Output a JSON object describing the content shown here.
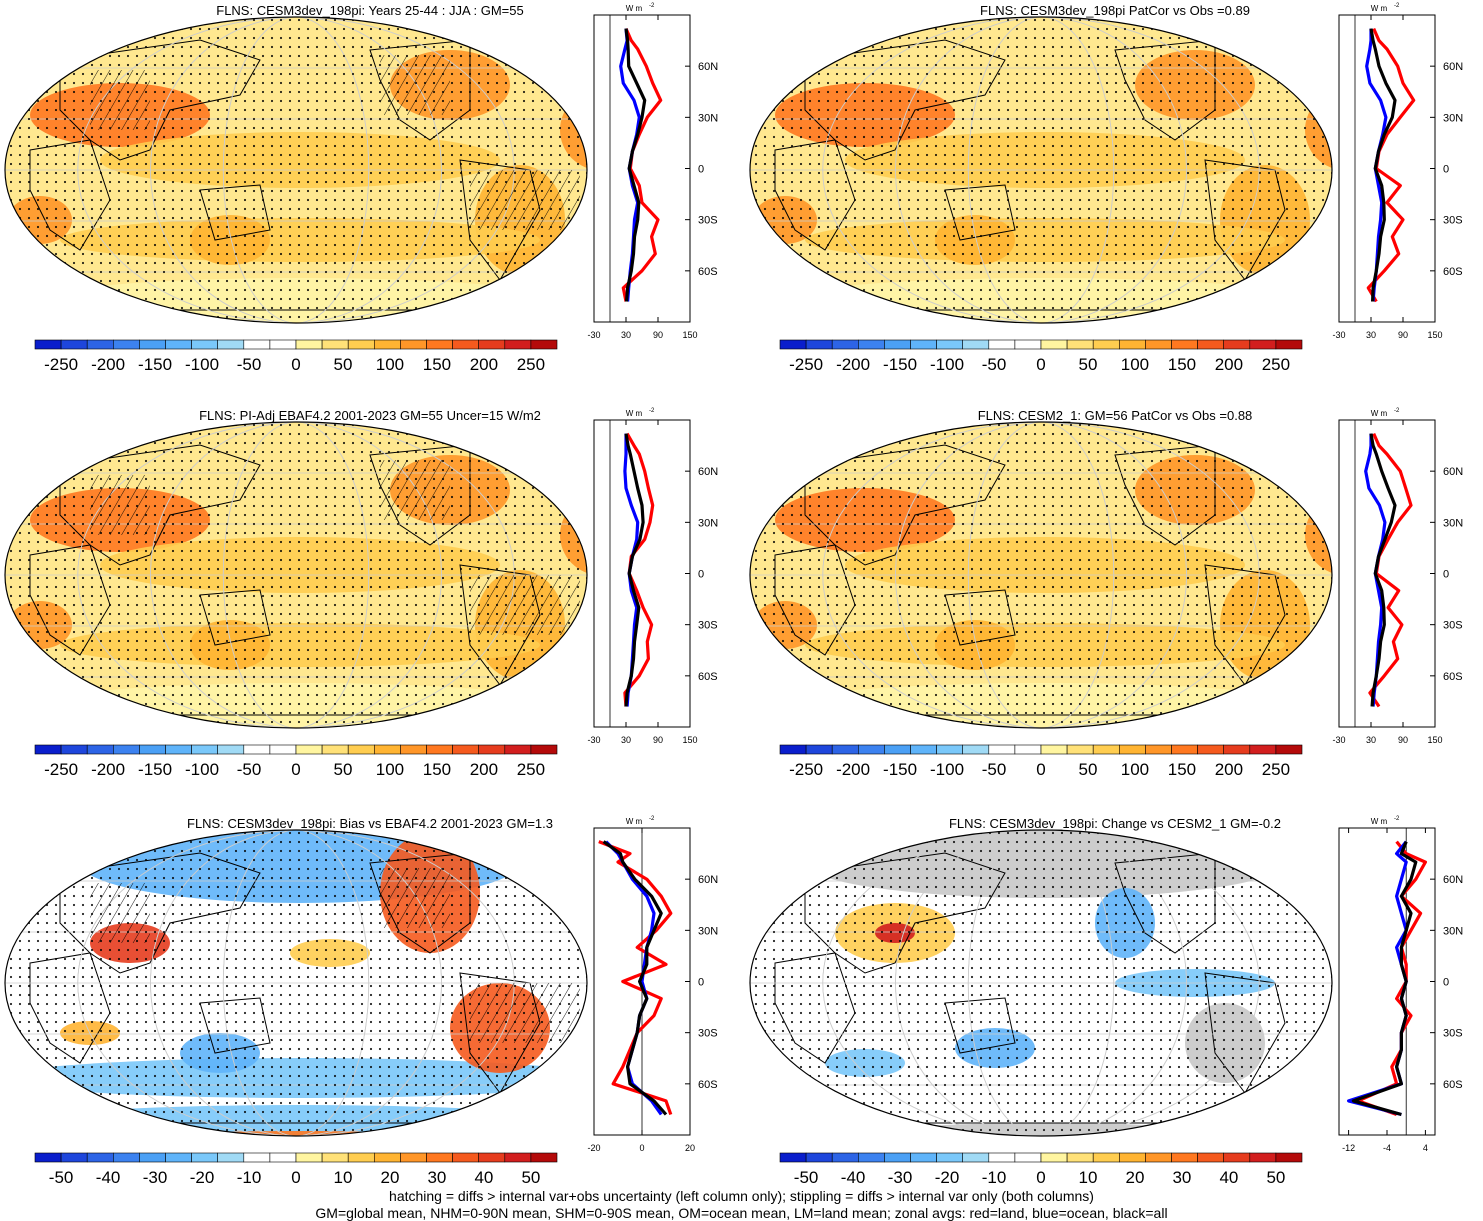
{
  "colors": {
    "land_line": "#000000",
    "ocean_line": "#0000ff",
    "all_line": "#000000",
    "land_red": "#ff0000",
    "missing": "#c8c8c8"
  },
  "color_scale": [
    "#0a1ecc",
    "#1e46dc",
    "#2d64e6",
    "#3c82f0",
    "#4ba0f5",
    "#5fb4fa",
    "#7ac8fa",
    "#a0daf5",
    "#ffffff",
    "#ffffff",
    "#fff5a0",
    "#ffe178",
    "#ffcd50",
    "#ffb432",
    "#ff9628",
    "#ff7820",
    "#f55a1e",
    "#e63c1e",
    "#d21e1e",
    "#b40a0a"
  ],
  "chart_data": [
    {
      "type": "heatmap",
      "panel": "p1",
      "title": "FLNS: CESM3dev_198pi: Years 25-44 : JJA : GM=55",
      "colorbar_ticks": [
        "-250",
        "-200",
        "-150",
        "-100",
        "-50",
        "0",
        "50",
        "100",
        "150",
        "200",
        "250"
      ],
      "zonal": {
        "type": "line",
        "unit_label": "W m",
        "unit_sup": "-2",
        "xlim": [
          -30,
          150
        ],
        "xticks": [
          "-30",
          "30",
          "90",
          "150"
        ],
        "ylim": [
          -90,
          90
        ],
        "yticks": [
          "60N",
          "30N",
          "0",
          "30S",
          "60S"
        ],
        "lat": [
          82,
          75,
          70,
          60,
          50,
          40,
          30,
          20,
          10,
          0,
          -10,
          -20,
          -30,
          -40,
          -50,
          -60,
          -70,
          -78
        ],
        "series": [
          {
            "key": "land",
            "values": [
              30,
              40,
              52,
              68,
              80,
              95,
              70,
              55,
              42,
              38,
              55,
              60,
              90,
              78,
              85,
              60,
              25,
              30
            ]
          },
          {
            "key": "ocean",
            "values": [
              30,
              32,
              28,
              20,
              25,
              45,
              55,
              50,
              42,
              36,
              42,
              52,
              46,
              44,
              42,
              38,
              35,
              33
            ]
          },
          {
            "key": "all",
            "values": [
              30,
              33,
              34,
              35,
              50,
              65,
              60,
              52,
              42,
              36,
              45,
              54,
              52,
              46,
              44,
              40,
              33,
              31
            ]
          }
        ]
      }
    },
    {
      "type": "heatmap",
      "panel": "p2",
      "title": "FLNS: CESM3dev_198pi PatCor vs Obs =0.89",
      "colorbar_ticks": [
        "-250",
        "-200",
        "-150",
        "-100",
        "-50",
        "0",
        "50",
        "100",
        "150",
        "200",
        "250"
      ],
      "zonal": {
        "type": "line",
        "unit_label": "W m",
        "unit_sup": "-2",
        "xlim": [
          -30,
          150
        ],
        "xticks": [
          "-30",
          "30",
          "90",
          "150"
        ],
        "ylim": [
          -90,
          90
        ],
        "yticks": [
          "60N",
          "30N",
          "0",
          "30S",
          "60S"
        ],
        "lat": [
          82,
          75,
          70,
          60,
          50,
          40,
          30,
          20,
          10,
          0,
          -10,
          -20,
          -30,
          -40,
          -50,
          -60,
          -70,
          -78
        ],
        "series": [
          {
            "key": "land",
            "values": [
              35,
              45,
              60,
              80,
              90,
              110,
              85,
              60,
              45,
              40,
              85,
              60,
              90,
              70,
              82,
              55,
              25,
              40
            ]
          },
          {
            "key": "ocean",
            "values": [
              30,
              30,
              28,
              22,
              28,
              48,
              58,
              52,
              44,
              38,
              44,
              50,
              48,
              44,
              42,
              40,
              36,
              34
            ]
          },
          {
            "key": "all",
            "values": [
              30,
              34,
              38,
              45,
              58,
              75,
              70,
              55,
              44,
              38,
              50,
              54,
              55,
              48,
              45,
              40,
              34,
              33
            ]
          }
        ]
      }
    },
    {
      "type": "heatmap",
      "panel": "p3",
      "title": "FLNS: PI-Adj EBAF4.2 2001-2023 GM=55 Uncer=15 W/m2",
      "colorbar_ticks": [
        "-250",
        "-200",
        "-150",
        "-100",
        "-50",
        "0",
        "50",
        "100",
        "150",
        "200",
        "250"
      ],
      "zonal": {
        "type": "line",
        "unit_label": "W m",
        "unit_sup": "-2",
        "xlim": [
          -30,
          150
        ],
        "xticks": [
          "-30",
          "30",
          "90",
          "150"
        ],
        "ylim": [
          -90,
          90
        ],
        "yticks": [
          "60N",
          "30N",
          "0",
          "30S",
          "60S"
        ],
        "lat": [
          82,
          75,
          70,
          60,
          50,
          40,
          30,
          20,
          10,
          0,
          -10,
          -20,
          -30,
          -40,
          -50,
          -60,
          -70,
          -78
        ],
        "series": [
          {
            "key": "land",
            "values": [
              32,
              45,
              55,
              65,
              72,
              80,
              75,
              65,
              40,
              36,
              50,
              62,
              78,
              70,
              72,
              55,
              28,
              30
            ]
          },
          {
            "key": "ocean",
            "values": [
              30,
              30,
              30,
              28,
              30,
              40,
              52,
              50,
              42,
              36,
              40,
              50,
              46,
              44,
              42,
              40,
              34,
              32
            ]
          },
          {
            "key": "all",
            "values": [
              30,
              34,
              38,
              45,
              52,
              60,
              62,
              56,
              42,
              36,
              44,
              54,
              50,
              46,
              44,
              40,
              32,
              30
            ]
          }
        ]
      }
    },
    {
      "type": "heatmap",
      "panel": "p4",
      "title": "FLNS: CESM2_1: GM=56 PatCor vs Obs =0.88",
      "colorbar_ticks": [
        "-250",
        "-200",
        "-150",
        "-100",
        "-50",
        "0",
        "50",
        "100",
        "150",
        "200",
        "250"
      ],
      "zonal": {
        "type": "line",
        "unit_label": "W m",
        "unit_sup": "-2",
        "xlim": [
          -30,
          150
        ],
        "xticks": [
          "-30",
          "30",
          "90",
          "150"
        ],
        "ylim": [
          -90,
          90
        ],
        "yticks": [
          "60N",
          "30N",
          "0",
          "30S",
          "60S"
        ],
        "lat": [
          82,
          75,
          70,
          60,
          50,
          40,
          30,
          20,
          10,
          0,
          -10,
          -20,
          -30,
          -40,
          -50,
          -60,
          -70,
          -78
        ],
        "series": [
          {
            "key": "land",
            "values": [
              35,
              45,
              60,
              85,
              95,
              105,
              80,
              62,
              45,
              40,
              82,
              62,
              88,
              72,
              80,
              55,
              28,
              45
            ]
          },
          {
            "key": "ocean",
            "values": [
              30,
              30,
              28,
              20,
              26,
              46,
              56,
              52,
              44,
              38,
              44,
              50,
              48,
              44,
              42,
              40,
              36,
              34
            ]
          },
          {
            "key": "all",
            "values": [
              30,
              34,
              40,
              50,
              62,
              75,
              68,
              56,
              44,
              38,
              50,
              54,
              55,
              48,
              45,
              40,
              34,
              32
            ]
          }
        ]
      }
    },
    {
      "type": "heatmap",
      "panel": "p5",
      "title": "FLNS: CESM3dev_198pi: Bias vs EBAF4.2 2001-2023 GM=1.3",
      "colorbar_ticks": [
        "-50",
        "-40",
        "-30",
        "-20",
        "-10",
        "0",
        "10",
        "20",
        "30",
        "40",
        "50"
      ],
      "zonal": {
        "type": "line",
        "unit_label": "W m",
        "unit_sup": "-2",
        "xlim": [
          -20,
          20
        ],
        "xticks": [
          "-20",
          "0",
          "20"
        ],
        "ylim": [
          -90,
          90
        ],
        "yticks": [
          "60N",
          "30N",
          "0",
          "30S",
          "60S"
        ],
        "lat": [
          82,
          75,
          70,
          60,
          50,
          40,
          30,
          20,
          10,
          0,
          -10,
          -20,
          -30,
          -40,
          -50,
          -60,
          -70,
          -78
        ],
        "series": [
          {
            "key": "land",
            "values": [
              -18,
              -5,
              -10,
              2,
              8,
              12,
              6,
              -2,
              10,
              -8,
              8,
              5,
              -2,
              -5,
              -8,
              -12,
              10,
              12
            ]
          },
          {
            "key": "ocean",
            "values": [
              -15,
              -10,
              -8,
              -4,
              2,
              5,
              4,
              2,
              1,
              0,
              2,
              -1,
              -2,
              -4,
              -6,
              -4,
              4,
              8
            ]
          },
          {
            "key": "all",
            "values": [
              -16,
              -9,
              -8,
              -3,
              4,
              8,
              5,
              2,
              2,
              -1,
              2,
              -1,
              -2,
              -4,
              -6,
              -5,
              5,
              10
            ]
          }
        ]
      }
    },
    {
      "type": "heatmap",
      "panel": "p6",
      "title": "FLNS: CESM3dev_198pi: Change vs CESM2_1 GM=-0.2",
      "colorbar_ticks": [
        "-50",
        "-40",
        "-30",
        "-20",
        "-10",
        "0",
        "10",
        "20",
        "30",
        "40",
        "50"
      ],
      "zonal": {
        "type": "line",
        "unit_label": "W m",
        "unit_sup": "-2",
        "xlim": [
          -14,
          6
        ],
        "xticks": [
          "-12",
          "-4",
          "4"
        ],
        "ylim": [
          -90,
          90
        ],
        "yticks": [
          "60N",
          "30N",
          "0",
          "30S",
          "60S"
        ],
        "lat": [
          82,
          75,
          70,
          60,
          50,
          40,
          30,
          20,
          10,
          0,
          -10,
          -20,
          -30,
          -40,
          -50,
          -60,
          -70,
          -78
        ],
        "series": [
          {
            "key": "land",
            "values": [
              -2,
              0,
              4,
              2,
              -1,
              3,
              1,
              -1,
              0,
              0,
              -2,
              1,
              -1,
              -1,
              -3,
              -2,
              -10,
              -2
            ]
          },
          {
            "key": "ocean",
            "values": [
              0,
              -2,
              0,
              -1,
              -2,
              -1,
              0,
              -2,
              -1,
              0,
              -1,
              0,
              -1,
              -1,
              -2,
              -1,
              -12,
              -1
            ]
          },
          {
            "key": "all",
            "values": [
              0,
              -1,
              2,
              1,
              -1,
              1,
              0,
              -1,
              -1,
              0,
              -1,
              0,
              -1,
              -1,
              -2,
              -1,
              -11,
              -1
            ]
          }
        ]
      }
    }
  ],
  "footer": {
    "line1": "hatching = diffs > internal var+obs uncertainty (left column only); stippling = diffs > internal var only (both columns)",
    "line2": "GM=global mean, NHM=0-90N mean, SHM=0-90S mean, OM=ocean mean, LM=land mean; zonal avgs: red=land, blue=ocean, black=all"
  }
}
